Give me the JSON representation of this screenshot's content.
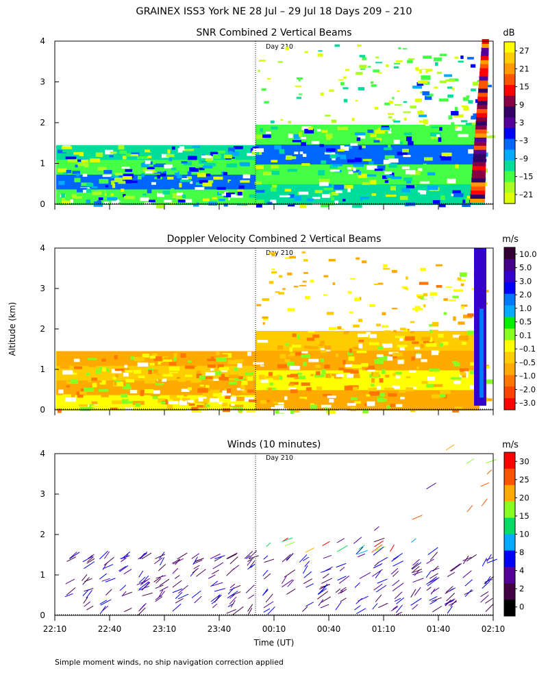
{
  "page": {
    "title": "GRAINEX ISS3 York NE  28 Jul – 29 Jul 18 Days 209 – 210",
    "footnote": "Simple moment winds, no ship navigation correction applied",
    "y_axis_label": "Altitude (km)",
    "x_axis_label": "Time (UT)",
    "day_marker_label": "Day 210"
  },
  "chart_data": [
    {
      "type": "heatmap",
      "title": "SNR Combined 2 Vertical Beams",
      "xlabel": "Time (UT)",
      "ylabel": "Altitude (km)",
      "x_ticks": [
        "22:10",
        "22:40",
        "23:10",
        "23:40",
        "00:10",
        "00:40",
        "01:10",
        "01:40",
        "02:10"
      ],
      "y_ticks": [
        "0",
        "1",
        "2",
        "3",
        "4"
      ],
      "ylim": [
        0,
        4
      ],
      "colorbar": {
        "unit": "dB",
        "labels": [
          "27",
          "21",
          "15",
          "9",
          "3",
          "–3",
          "–9",
          "–15",
          "–21"
        ],
        "colors": [
          "#ffff00",
          "#ffcc00",
          "#ff9900",
          "#ff5500",
          "#ff0000",
          "#880044",
          "#330066",
          "#550099",
          "#0000ff",
          "#0066ff",
          "#00aaff",
          "#00dd99",
          "#44ff44",
          "#aaff22",
          "#ddff00"
        ]
      },
      "day_marker": "Day 210"
    },
    {
      "type": "heatmap",
      "title": "Doppler Velocity Combined 2 Vertical Beams",
      "xlabel": "Time (UT)",
      "ylabel": "Altitude (km)",
      "x_ticks": [
        "22:10",
        "22:40",
        "23:10",
        "23:40",
        "00:10",
        "00:40",
        "01:10",
        "01:40",
        "02:10"
      ],
      "y_ticks": [
        "0",
        "1",
        "2",
        "3",
        "4"
      ],
      "ylim": [
        0,
        4
      ],
      "colorbar": {
        "unit": "m/s",
        "labels": [
          "10.0",
          "5.0",
          "3.0",
          "2.0",
          "1.0",
          "0.5",
          "0.1",
          "–0.1",
          "–0.5",
          "–1.0",
          "–2.0",
          "–3.0"
        ],
        "colors": [
          "#330033",
          "#440088",
          "#3300cc",
          "#0000ff",
          "#0077ff",
          "#00aaff",
          "#00ee00",
          "#88ff22",
          "#ffff00",
          "#ffcc00",
          "#ffaa00",
          "#ff7700",
          "#ff4400",
          "#ff0000"
        ]
      },
      "day_marker": "Day 210"
    },
    {
      "type": "scatter",
      "title": "Winds (10 minutes)",
      "xlabel": "Time (UT)",
      "ylabel": "Altitude (km)",
      "x_ticks": [
        "22:10",
        "22:40",
        "23:10",
        "23:40",
        "00:10",
        "00:40",
        "01:10",
        "01:40",
        "02:10"
      ],
      "y_ticks": [
        "0",
        "1",
        "2",
        "3",
        "4"
      ],
      "ylim": [
        0,
        4
      ],
      "colorbar": {
        "unit": "m/s",
        "labels": [
          "30",
          "25",
          "20",
          "15",
          "10",
          "8",
          "4",
          "2",
          "0"
        ],
        "colors": [
          "#ff0000",
          "#ff5500",
          "#ffaa00",
          "#88ff22",
          "#00dd66",
          "#00aaff",
          "#0000ff",
          "#550099",
          "#440044",
          "#000000"
        ]
      },
      "day_marker": "Day 210"
    }
  ]
}
